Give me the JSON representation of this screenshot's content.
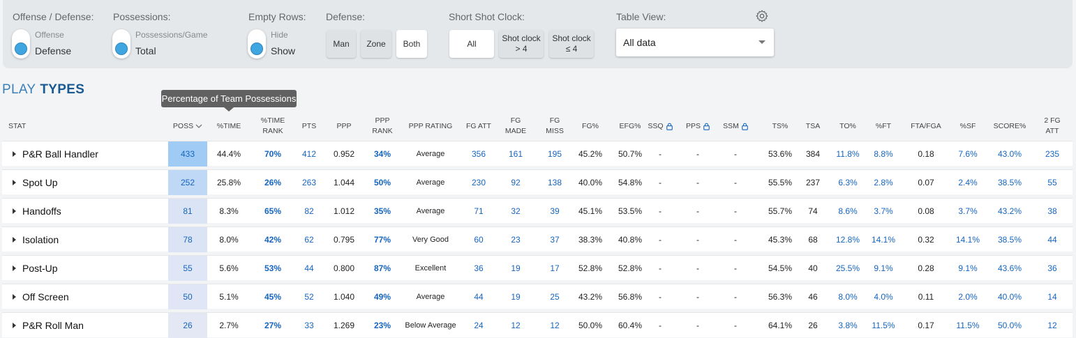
{
  "filters": {
    "offense_defense": {
      "label": "Offense / Defense:",
      "top": "Offense",
      "bottom": "Defense"
    },
    "possessions": {
      "label": "Possessions:",
      "top": "Possessions/Game",
      "bottom": "Total"
    },
    "empty_rows": {
      "label": "Empty Rows:",
      "top": "Hide",
      "bottom": "Show"
    },
    "defense": {
      "label": "Defense:",
      "options": [
        "Man",
        "Zone",
        "Both"
      ],
      "selected": "Both"
    },
    "shot_clock": {
      "label": "Short Shot Clock:",
      "options": [
        "All",
        "Shot clock\n> 4",
        "Shot clock\n≤ 4"
      ],
      "selected": "All"
    },
    "table_view": {
      "label": "Table View:",
      "value": "All data"
    }
  },
  "section_title": {
    "part1": "PLAY",
    "part2": "TYPES"
  },
  "tooltip": "Percentage of Team Possessions",
  "columns": [
    "STAT",
    "POSS",
    "%TIME",
    "%TIME RANK",
    "PTS",
    "PPP",
    "PPP RANK",
    "PPP RATING",
    "FG ATT",
    "FG MADE",
    "FG MISS",
    "FG%",
    "EFG%",
    "SSQ",
    "PPS",
    "SSM",
    "TS%",
    "TSA",
    "TO%",
    "%FT",
    "FTA/FGA",
    "%SF",
    "SCORE%",
    "2 FG ATT"
  ],
  "rows": [
    [
      "P&R Ball Handler",
      "433",
      "44.4%",
      "70%",
      "412",
      "0.952",
      "34%",
      "Average",
      "356",
      "161",
      "195",
      "45.2%",
      "50.7%",
      "-",
      "-",
      "-",
      "53.6%",
      "384",
      "11.8%",
      "8.8%",
      "0.18",
      "7.6%",
      "43.0%",
      "235"
    ],
    [
      "Spot Up",
      "252",
      "25.8%",
      "26%",
      "263",
      "1.044",
      "50%",
      "Average",
      "230",
      "92",
      "138",
      "40.0%",
      "54.8%",
      "-",
      "-",
      "-",
      "55.5%",
      "237",
      "6.3%",
      "2.8%",
      "0.07",
      "2.4%",
      "38.5%",
      "55"
    ],
    [
      "Handoffs",
      "81",
      "8.3%",
      "65%",
      "82",
      "1.012",
      "35%",
      "Average",
      "71",
      "32",
      "39",
      "45.1%",
      "53.5%",
      "-",
      "-",
      "-",
      "55.7%",
      "74",
      "8.6%",
      "3.7%",
      "0.08",
      "3.7%",
      "43.2%",
      "38"
    ],
    [
      "Isolation",
      "78",
      "8.0%",
      "42%",
      "62",
      "0.795",
      "77%",
      "Very Good",
      "60",
      "23",
      "37",
      "38.3%",
      "40.8%",
      "-",
      "-",
      "-",
      "45.3%",
      "68",
      "12.8%",
      "14.1%",
      "0.32",
      "14.1%",
      "38.5%",
      "44"
    ],
    [
      "Post-Up",
      "55",
      "5.6%",
      "53%",
      "44",
      "0.800",
      "87%",
      "Excellent",
      "36",
      "19",
      "17",
      "52.8%",
      "52.8%",
      "-",
      "-",
      "-",
      "54.5%",
      "40",
      "25.5%",
      "9.1%",
      "0.28",
      "9.1%",
      "43.6%",
      "36"
    ],
    [
      "Off Screen",
      "50",
      "5.1%",
      "45%",
      "52",
      "1.040",
      "49%",
      "Average",
      "44",
      "19",
      "25",
      "43.2%",
      "56.8%",
      "-",
      "-",
      "-",
      "56.3%",
      "46",
      "8.0%",
      "4.0%",
      "0.11",
      "2.0%",
      "40.0%",
      "14"
    ],
    [
      "P&R Roll Man",
      "26",
      "2.7%",
      "27%",
      "33",
      "1.269",
      "23%",
      "Below Average",
      "24",
      "12",
      "12",
      "50.0%",
      "60.4%",
      "-",
      "-",
      "-",
      "64.1%",
      "26",
      "3.8%",
      "11.5%",
      "0.17",
      "11.5%",
      "50.0%",
      "12"
    ]
  ],
  "colors": {
    "accent": "#1565c0",
    "poss_heat_max": "#9fcbf5",
    "poss_heat_min": "#e4e8f5"
  }
}
